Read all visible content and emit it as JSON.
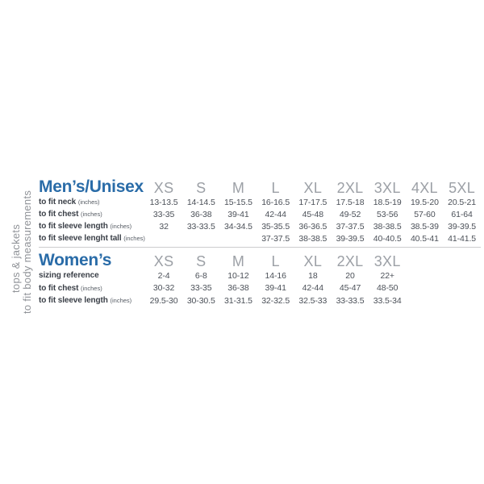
{
  "sidebar": {
    "category": "tops & jackets",
    "note": "to fit body measurements"
  },
  "colors": {
    "title_blue": "#2a6ca8",
    "size_header_gray": "#9ca0a6",
    "row_label_dark": "#3a3f47",
    "value_gray": "#4b5058",
    "divider_gray": "#cccdce",
    "sidebar_gray": "#909398",
    "background": "#ffffff"
  },
  "chart_data": [
    {
      "type": "table",
      "title": "Men’s/Unisex",
      "sizes": [
        "XS",
        "S",
        "M",
        "L",
        "XL",
        "2XL",
        "3XL",
        "4XL",
        "5XL"
      ],
      "rows": [
        {
          "label": "to fit neck",
          "unit": "(inches)",
          "values": [
            "13-13.5",
            "14-14.5",
            "15-15.5",
            "16-16.5",
            "17-17.5",
            "17.5-18",
            "18.5-19",
            "19.5-20",
            "20.5-21"
          ]
        },
        {
          "label": "to fit chest",
          "unit": "(inches)",
          "values": [
            "33-35",
            "36-38",
            "39-41",
            "42-44",
            "45-48",
            "49-52",
            "53-56",
            "57-60",
            "61-64"
          ]
        },
        {
          "label": "to fit sleeve length",
          "unit": "(inches)",
          "values": [
            "32",
            "33-33.5",
            "34-34.5",
            "35-35.5",
            "36-36.5",
            "37-37.5",
            "38-38.5",
            "38.5-39",
            "39-39.5"
          ]
        },
        {
          "label": "to fit sleeve lenght tall",
          "unit": "(inches)",
          "values": [
            "",
            "",
            "",
            "37-37.5",
            "38-38.5",
            "39-39.5",
            "40-40.5",
            "40.5-41",
            "41-41.5"
          ]
        }
      ]
    },
    {
      "type": "table",
      "title": "Women’s",
      "sizes": [
        "XS",
        "S",
        "M",
        "L",
        "XL",
        "2XL",
        "3XL"
      ],
      "rows": [
        {
          "label": "sizing reference",
          "unit": "",
          "values": [
            "2-4",
            "6-8",
            "10-12",
            "14-16",
            "18",
            "20",
            "22+"
          ]
        },
        {
          "label": "to fit chest",
          "unit": "(inches)",
          "values": [
            "30-32",
            "33-35",
            "36-38",
            "39-41",
            "42-44",
            "45-47",
            "48-50"
          ]
        },
        {
          "label": "to fit sleeve length",
          "unit": "(inches)",
          "values": [
            "29.5-30",
            "30-30.5",
            "31-31.5",
            "32-32.5",
            "32.5-33",
            "33-33.5",
            "33.5-34"
          ]
        }
      ]
    }
  ]
}
